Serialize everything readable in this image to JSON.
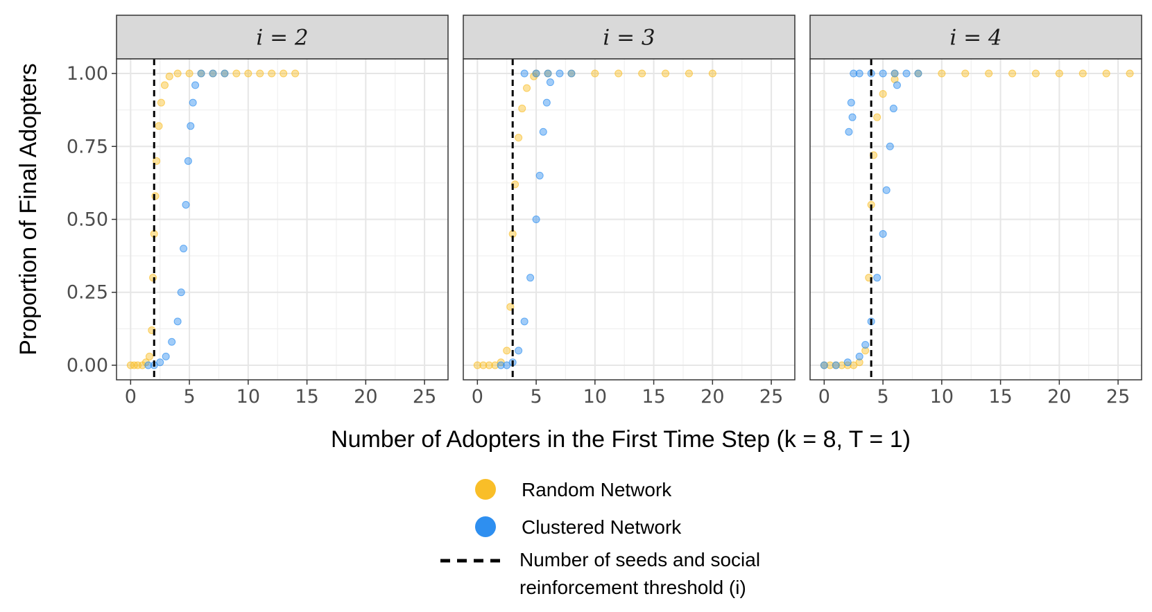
{
  "chart_data": {
    "type": "scatter",
    "xlabel": "Number of Adopters in the First Time Step (k = 8, T = 1)",
    "ylabel": "Proportion of Final Adopters",
    "xlim": [
      -1.2,
      27
    ],
    "ylim": [
      -0.05,
      1.05
    ],
    "x_ticks": [
      "0",
      "5",
      "10",
      "15",
      "20",
      "25"
    ],
    "y_ticks": [
      "0.00",
      "0.25",
      "0.50",
      "0.75",
      "1.00"
    ],
    "grid": true,
    "legend_position": "bottom",
    "colors": {
      "random": "#F9BE28",
      "clustered": "#2E8FF0",
      "threshold": "#000000"
    },
    "legend": [
      {
        "key": "random",
        "label": "Random Network",
        "marker": "dot"
      },
      {
        "key": "clustered",
        "label": "Clustered Network",
        "marker": "dot"
      },
      {
        "key": "threshold",
        "label_line1": "Number of seeds and social",
        "label_line2": "reinforcement threshold (i)",
        "marker": "dashed-line"
      }
    ],
    "panels": [
      {
        "strip": "i = 2",
        "threshold": 2,
        "series": [
          {
            "key": "random",
            "name": "Random Network",
            "points": [
              [
                0,
                0
              ],
              [
                0.3,
                0
              ],
              [
                0.6,
                0
              ],
              [
                1.0,
                0
              ],
              [
                1.3,
                0.01
              ],
              [
                1.6,
                0.03
              ],
              [
                1.8,
                0.12
              ],
              [
                1.9,
                0.3
              ],
              [
                2.0,
                0.45
              ],
              [
                2.1,
                0.58
              ],
              [
                2.2,
                0.7
              ],
              [
                2.4,
                0.82
              ],
              [
                2.6,
                0.9
              ],
              [
                2.9,
                0.96
              ],
              [
                3.3,
                0.99
              ],
              [
                4,
                1
              ],
              [
                5,
                1
              ],
              [
                6,
                1
              ],
              [
                7,
                1
              ],
              [
                8,
                1
              ],
              [
                9,
                1
              ],
              [
                10,
                1
              ],
              [
                11,
                1
              ],
              [
                12,
                1
              ],
              [
                13,
                1
              ],
              [
                14,
                1
              ]
            ]
          },
          {
            "key": "clustered",
            "name": "Clustered Network",
            "points": [
              [
                1.5,
                0
              ],
              [
                2,
                0
              ],
              [
                2.5,
                0.01
              ],
              [
                3,
                0.03
              ],
              [
                3.5,
                0.08
              ],
              [
                4,
                0.15
              ],
              [
                4.3,
                0.25
              ],
              [
                4.5,
                0.4
              ],
              [
                4.7,
                0.55
              ],
              [
                4.9,
                0.7
              ],
              [
                5.1,
                0.82
              ],
              [
                5.3,
                0.9
              ],
              [
                5.5,
                0.96
              ],
              [
                6,
                1
              ],
              [
                7,
                1
              ],
              [
                8,
                1
              ]
            ]
          }
        ]
      },
      {
        "strip": "i = 3",
        "threshold": 3,
        "series": [
          {
            "key": "random",
            "name": "Random Network",
            "points": [
              [
                0,
                0
              ],
              [
                0.5,
                0
              ],
              [
                1,
                0
              ],
              [
                1.5,
                0
              ],
              [
                2,
                0.01
              ],
              [
                2.5,
                0.05
              ],
              [
                2.8,
                0.2
              ],
              [
                3,
                0.45
              ],
              [
                3.2,
                0.62
              ],
              [
                3.5,
                0.78
              ],
              [
                3.8,
                0.88
              ],
              [
                4.2,
                0.95
              ],
              [
                4.8,
                0.99
              ],
              [
                5,
                1
              ],
              [
                6,
                1
              ],
              [
                8,
                1
              ],
              [
                10,
                1
              ],
              [
                12,
                1
              ],
              [
                14,
                1
              ],
              [
                16,
                1
              ],
              [
                18,
                1
              ],
              [
                20,
                1
              ]
            ]
          },
          {
            "key": "clustered",
            "name": "Clustered Network",
            "points": [
              [
                2,
                0
              ],
              [
                2.5,
                0
              ],
              [
                3,
                0.01
              ],
              [
                3.5,
                0.05
              ],
              [
                4,
                0.15
              ],
              [
                4.5,
                0.3
              ],
              [
                5,
                0.5
              ],
              [
                5.3,
                0.65
              ],
              [
                5.6,
                0.8
              ],
              [
                5.9,
                0.9
              ],
              [
                6.2,
                0.97
              ],
              [
                4,
                1
              ],
              [
                5,
                1
              ],
              [
                6,
                1
              ],
              [
                7,
                1
              ],
              [
                8,
                1
              ]
            ]
          }
        ]
      },
      {
        "strip": "i = 4",
        "threshold": 4,
        "series": [
          {
            "key": "random",
            "name": "Random Network",
            "points": [
              [
                0,
                0
              ],
              [
                0.5,
                0
              ],
              [
                1,
                0
              ],
              [
                1.5,
                0
              ],
              [
                2,
                0
              ],
              [
                2.5,
                0
              ],
              [
                3,
                0.01
              ],
              [
                3.5,
                0.05
              ],
              [
                3.8,
                0.3
              ],
              [
                4,
                0.55
              ],
              [
                4.2,
                0.72
              ],
              [
                4.5,
                0.85
              ],
              [
                5,
                0.93
              ],
              [
                6,
                0.98
              ],
              [
                6,
                1
              ],
              [
                8,
                1
              ],
              [
                10,
                1
              ],
              [
                12,
                1
              ],
              [
                14,
                1
              ],
              [
                16,
                1
              ],
              [
                18,
                1
              ],
              [
                20,
                1
              ],
              [
                22,
                1
              ],
              [
                24,
                1
              ],
              [
                26,
                1
              ]
            ]
          },
          {
            "key": "clustered",
            "name": "Clustered Network",
            "points": [
              [
                0,
                0
              ],
              [
                1,
                0
              ],
              [
                2,
                0.01
              ],
              [
                3,
                0.03
              ],
              [
                3.5,
                0.07
              ],
              [
                4,
                0.15
              ],
              [
                4.5,
                0.3
              ],
              [
                5,
                0.45
              ],
              [
                5.3,
                0.6
              ],
              [
                5.6,
                0.75
              ],
              [
                5.9,
                0.88
              ],
              [
                6.2,
                0.96
              ],
              [
                2.3,
                0.9
              ],
              [
                2.4,
                0.85
              ],
              [
                2.1,
                0.8
              ],
              [
                2.5,
                1
              ],
              [
                3,
                1
              ],
              [
                4,
                1
              ],
              [
                5,
                1
              ],
              [
                6,
                1
              ],
              [
                7,
                1
              ],
              [
                8,
                1
              ]
            ]
          }
        ]
      }
    ]
  }
}
